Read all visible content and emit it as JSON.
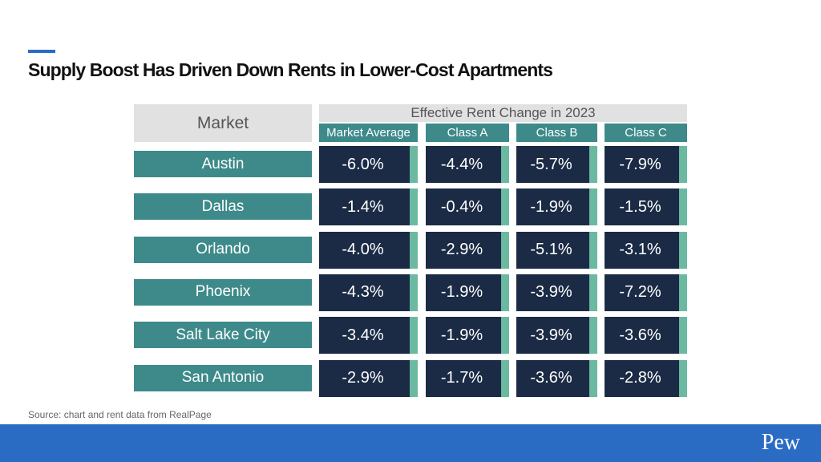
{
  "title": "Supply Boost Has Driven Down Rents in Lower-Cost Apartments",
  "chart_data": {
    "type": "table",
    "row_header": "Market",
    "group_header": "Effective Rent Change in 2023",
    "columns": [
      "Market Average",
      "Class A",
      "Class B",
      "Class C"
    ],
    "rows": [
      {
        "market": "Austin",
        "values": [
          "-6.0%",
          "-4.4%",
          "-5.7%",
          "-7.9%"
        ]
      },
      {
        "market": "Dallas",
        "values": [
          "-1.4%",
          "-0.4%",
          "-1.9%",
          "-1.5%"
        ]
      },
      {
        "market": "Orlando",
        "values": [
          "-4.0%",
          "-2.9%",
          "-5.1%",
          "-3.1%"
        ]
      },
      {
        "market": "Phoenix",
        "values": [
          "-4.3%",
          "-1.9%",
          "-3.9%",
          "-7.2%"
        ]
      },
      {
        "market": "Salt Lake City",
        "values": [
          "-3.4%",
          "-1.9%",
          "-3.9%",
          "-3.6%"
        ]
      },
      {
        "market": "San Antonio",
        "values": [
          "-2.9%",
          "-1.7%",
          "-3.6%",
          "-2.8%"
        ]
      }
    ]
  },
  "source": "Source: chart and rent data from RealPage",
  "footer": {
    "logo": "Pew"
  },
  "colors": {
    "teal": "#3e8a8a",
    "navy": "#1b2b45",
    "green": "#6bb9a0",
    "blue": "#2a6cc4"
  }
}
